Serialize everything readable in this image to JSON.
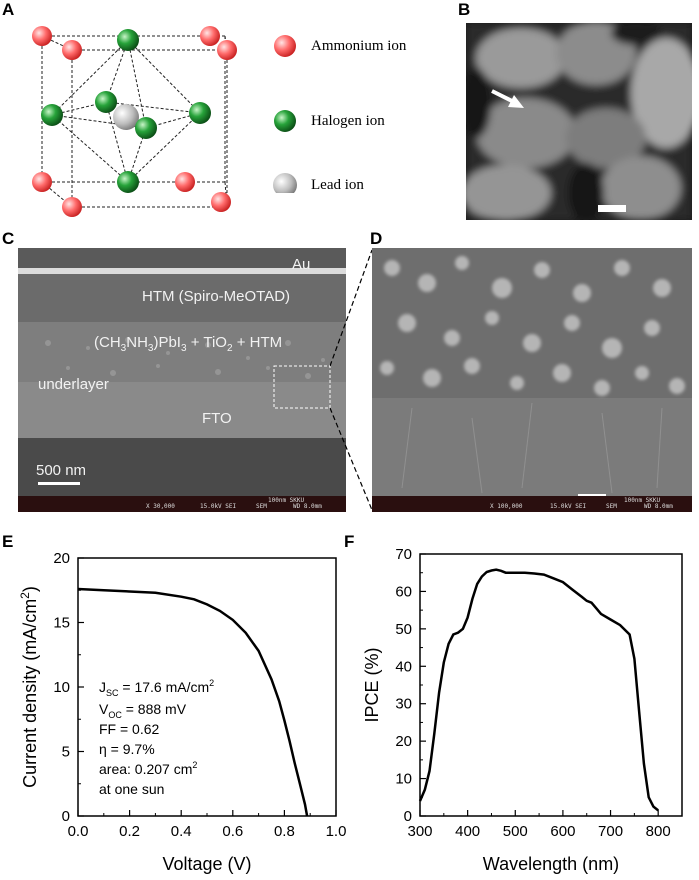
{
  "panels": {
    "a": "A",
    "b": "B",
    "c": "C",
    "d": "D",
    "e": "E",
    "f": "F"
  },
  "legend": {
    "ammonium": "Ammonium ion",
    "halogen": "Halogen ion",
    "lead": "Lead ion"
  },
  "colors": {
    "ammonium": "#e83a3a",
    "halogen": "#1e8a2e",
    "lead": "#b8b8b8"
  },
  "sem_c": {
    "au": "Au",
    "htm": "HTM (Spiro-MeOTAD)",
    "mix_a": "(CH",
    "mix_s1": "3",
    "mix_b": "NH",
    "mix_s2": "3",
    "mix_c": ")PbI",
    "mix_s3": "3",
    "mix_d": " + TiO",
    "mix_s4": "2",
    "mix_e": " + HTM",
    "underlayer": "underlayer",
    "fto": "FTO",
    "scale": "500 nm",
    "bar_mag": "X 30,000",
    "bar_kv": "15.0kV SEI",
    "bar_sem": "SEM",
    "bar_wd": "WD 8.0mm",
    "bar_scale": "100nm SKKU"
  },
  "sem_d": {
    "bar_mag": "X 100,000",
    "bar_kv": "15.0kV SEI",
    "bar_sem": "SEM",
    "bar_wd": "WD 8.0mm",
    "bar_scale": "100nm SKKU"
  },
  "jv": {
    "jsc_a": "J",
    "jsc_sub": "SC",
    "jsc_b": " = 17.6 mA/cm",
    "jsc_sup": "2",
    "voc_a": "V",
    "voc_sub": "OC",
    "voc_b": " = 888 mV",
    "ff": "FF = 0.62",
    "eta": "η = 9.7%",
    "area_a": "area: 0.207 cm",
    "area_sup": "2",
    "sun": "at one sun"
  },
  "chart_data": [
    {
      "type": "line",
      "xlabel": "Voltage (V)",
      "ylabel_a": "Current density (mA/cm",
      "ylabel_sup": "2",
      "ylabel_b": ")",
      "xlim": [
        0.0,
        1.0
      ],
      "ylim": [
        0,
        20
      ],
      "xticks": [
        "0.0",
        "0.2",
        "0.4",
        "0.6",
        "0.8",
        "1.0"
      ],
      "yticks": [
        "0",
        "5",
        "10",
        "15",
        "20"
      ],
      "x": [
        0.0,
        0.1,
        0.2,
        0.3,
        0.4,
        0.45,
        0.5,
        0.55,
        0.6,
        0.65,
        0.7,
        0.75,
        0.78,
        0.8,
        0.82,
        0.84,
        0.86,
        0.88,
        0.888
      ],
      "y": [
        17.6,
        17.5,
        17.4,
        17.3,
        17.0,
        16.8,
        16.4,
        15.9,
        15.2,
        14.2,
        12.8,
        10.6,
        8.9,
        7.4,
        5.8,
        4.1,
        2.5,
        0.9,
        0.0
      ]
    },
    {
      "type": "line",
      "xlabel": "Wavelength (nm)",
      "ylabel": "IPCE (%)",
      "xlim": [
        300,
        850
      ],
      "ylim": [
        0,
        70
      ],
      "xticks": [
        "300",
        "400",
        "500",
        "600",
        "700",
        "800"
      ],
      "yticks": [
        "0",
        "10",
        "20",
        "30",
        "40",
        "50",
        "60",
        "70"
      ],
      "x": [
        300,
        310,
        320,
        330,
        340,
        350,
        360,
        370,
        380,
        390,
        400,
        410,
        420,
        430,
        440,
        450,
        460,
        470,
        480,
        500,
        520,
        540,
        560,
        580,
        600,
        620,
        640,
        650,
        660,
        670,
        680,
        700,
        720,
        740,
        750,
        760,
        770,
        780,
        790,
        800
      ],
      "y": [
        4,
        7,
        12,
        22,
        33,
        41,
        46,
        48.5,
        49,
        50,
        53,
        58,
        62,
        64,
        65.2,
        65.6,
        65.8,
        65.5,
        65,
        65,
        65,
        64.8,
        64.5,
        63.5,
        62.5,
        60.5,
        58.5,
        57.5,
        57,
        55.5,
        54,
        52.5,
        51,
        48.5,
        42,
        28,
        14,
        5,
        2.5,
        1.5
      ]
    }
  ]
}
